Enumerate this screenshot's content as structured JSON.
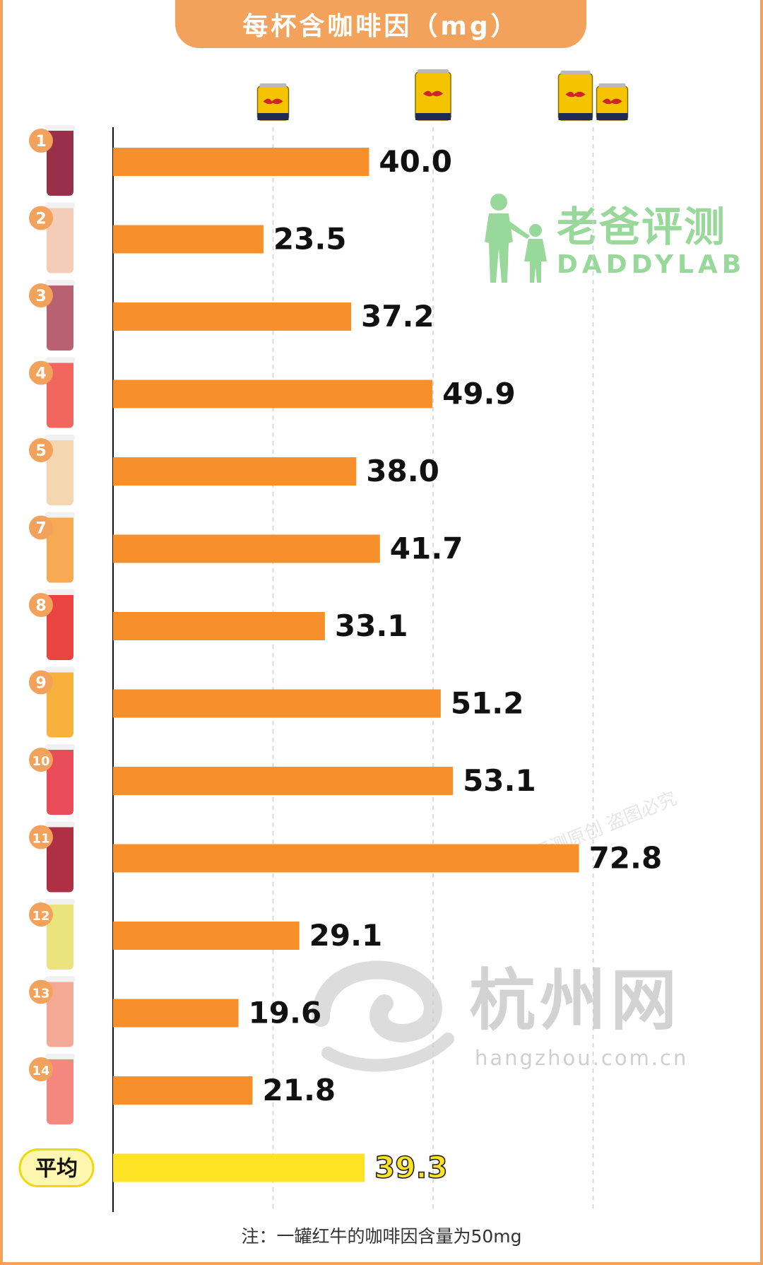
{
  "header": {
    "title": "每杯含咖啡因（mg）"
  },
  "footnote": "注：一罐红牛的咖啡因含量为50mg",
  "watermarks": {
    "daddylab_cn": "老爸评测",
    "daddylab_en": "DADDYLAB",
    "hangzhou_cn": "杭州网",
    "hangzhou_en": "hangzhou.com.cn",
    "diagonal": "老爸评测原创 盗图必究"
  },
  "colors": {
    "bar": "#f7902a",
    "average_bar": "#fde324",
    "badge": "#f3a25c",
    "frame": "#f3a25c"
  },
  "chart_data": {
    "type": "bar",
    "orientation": "horizontal",
    "categories": [
      "1",
      "2",
      "3",
      "4",
      "5",
      "7",
      "8",
      "9",
      "10",
      "11",
      "12",
      "13",
      "14",
      "平均"
    ],
    "values": [
      40.0,
      23.5,
      37.2,
      49.9,
      38.0,
      41.7,
      33.1,
      51.2,
      53.1,
      72.8,
      29.1,
      19.6,
      21.8,
      39.3
    ],
    "value_labels": [
      "40.0",
      "23.5",
      "37.2",
      "49.9",
      "38.0",
      "41.7",
      "33.1",
      "51.2",
      "53.1",
      "72.8",
      "29.1",
      "19.6",
      "21.8",
      "39.3"
    ],
    "title": "每杯含咖啡因（mg）",
    "xlim": [
      0,
      75
    ],
    "reference_lines": [
      25,
      50,
      75
    ],
    "reference_icons": [
      "half-can-icon",
      "can-icon",
      "one-and-half-can-icon"
    ],
    "grid": true,
    "highlight": "平均"
  }
}
